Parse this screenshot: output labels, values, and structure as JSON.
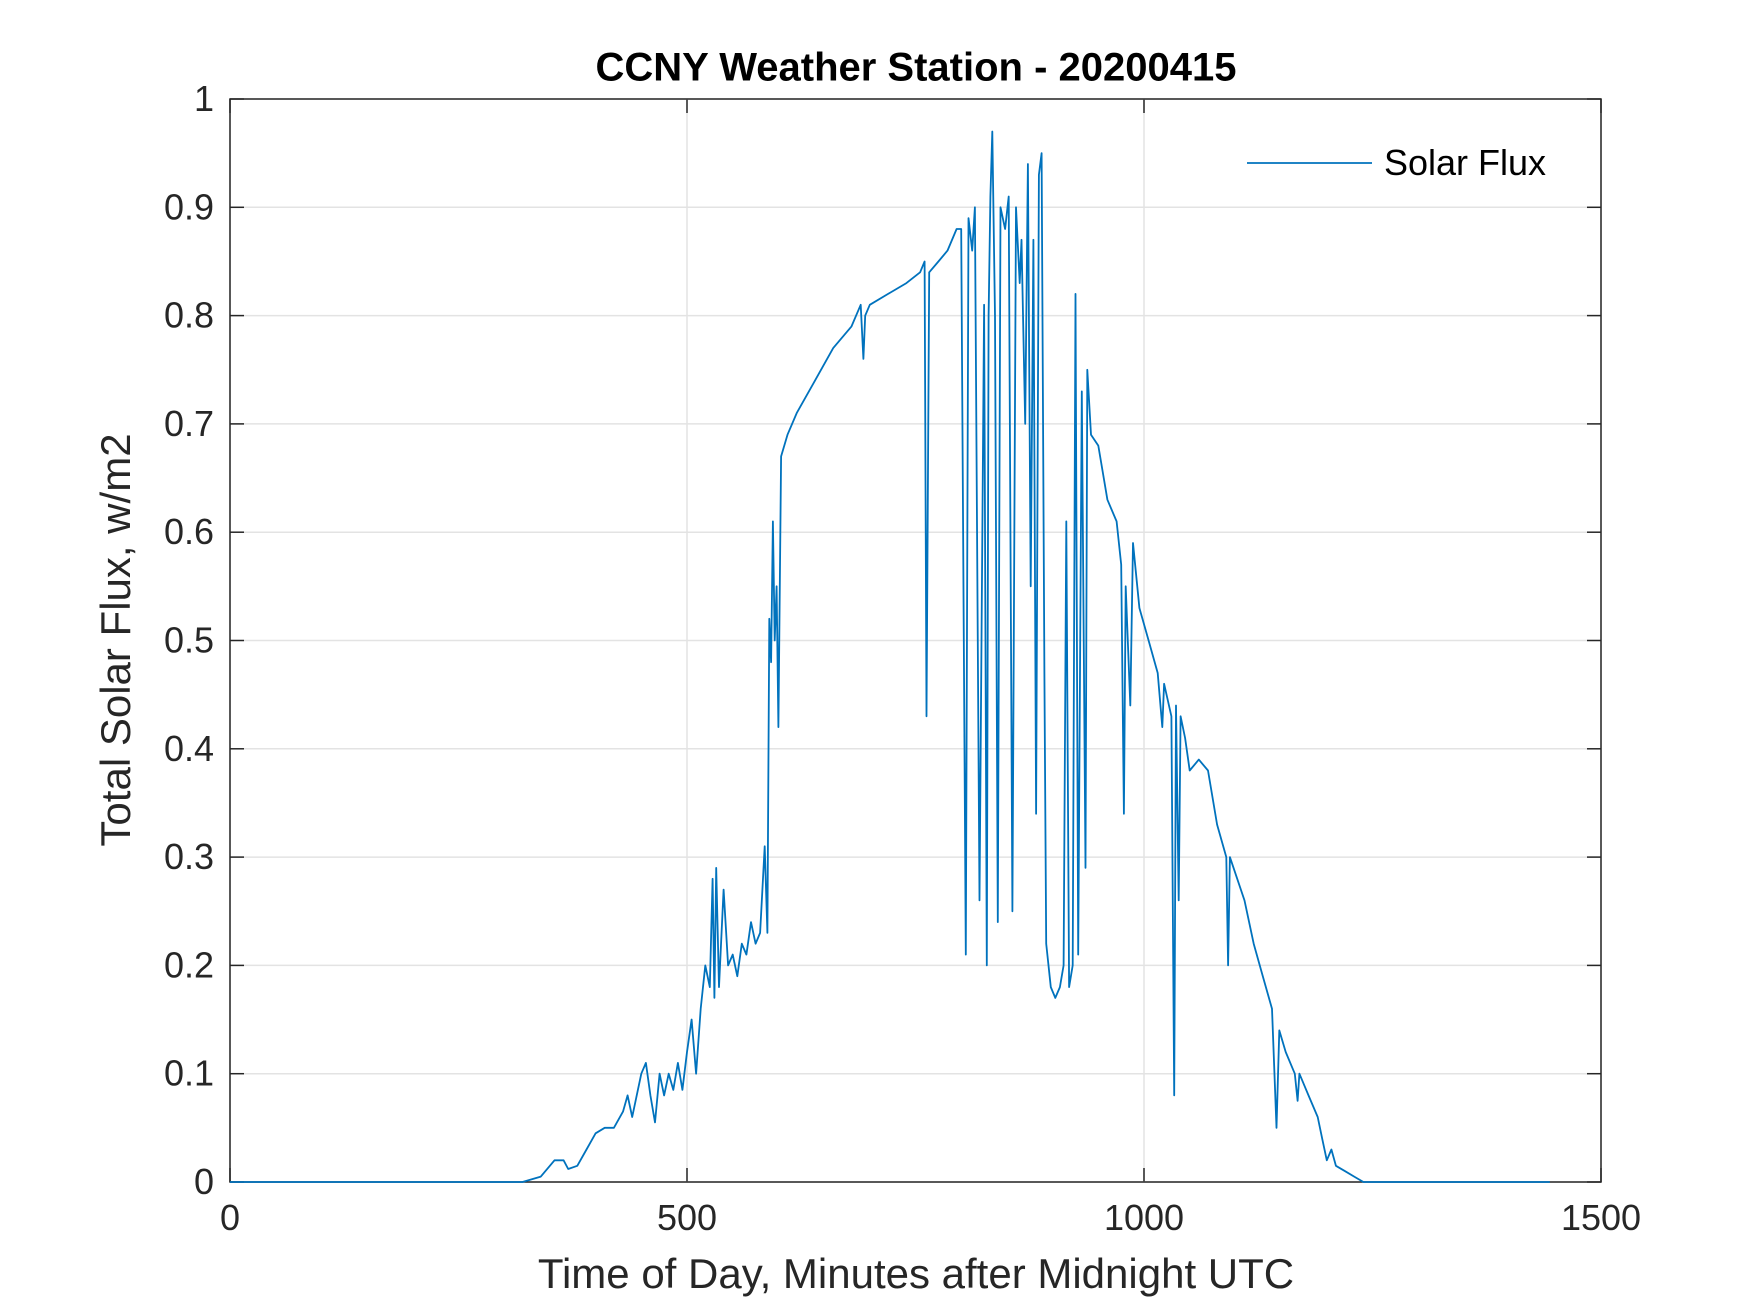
{
  "chart_data": {
    "type": "line",
    "title": "CCNY Weather Station - 20200415",
    "xlabel": "Time of Day, Minutes after Midnight UTC",
    "ylabel": "Total Solar Flux, w/m2",
    "xlim": [
      0,
      1500
    ],
    "xticks": [
      0,
      500,
      1000,
      1500
    ],
    "ylim": [
      0,
      1
    ],
    "yticks": [
      0,
      0.1,
      0.2,
      0.3,
      0.4,
      0.5,
      0.6,
      0.7,
      0.8,
      0.9,
      1
    ],
    "grid": true,
    "legend": "top-right",
    "series": [
      {
        "name": "Solar Flux",
        "color": "#0072bd",
        "x": [
          0,
          320,
          340,
          355,
          365,
          370,
          380,
          390,
          400,
          410,
          420,
          430,
          435,
          440,
          450,
          455,
          460,
          465,
          470,
          475,
          480,
          485,
          490,
          495,
          500,
          505,
          510,
          515,
          520,
          525,
          528,
          530,
          532,
          535,
          540,
          545,
          550,
          555,
          560,
          565,
          570,
          575,
          580,
          585,
          588,
          590,
          592,
          594,
          596,
          598,
          600,
          603,
          610,
          620,
          640,
          660,
          680,
          690,
          693,
          695,
          700,
          720,
          740,
          755,
          760,
          762,
          765,
          775,
          785,
          795,
          800,
          805,
          808,
          812,
          815,
          820,
          825,
          828,
          830,
          832,
          834,
          837,
          840,
          843,
          848,
          852,
          856,
          860,
          864,
          866,
          870,
          873,
          876,
          879,
          882,
          885,
          888,
          891,
          893,
          898,
          903,
          908,
          912,
          915,
          918,
          922,
          925,
          928,
          932,
          936,
          938,
          942,
          950,
          960,
          970,
          975,
          978,
          980,
          985,
          988,
          995,
          1005,
          1015,
          1020,
          1022,
          1030,
          1033,
          1035,
          1038,
          1040,
          1045,
          1050,
          1060,
          1070,
          1080,
          1090,
          1092,
          1094,
          1110,
          1120,
          1130,
          1140,
          1145,
          1148,
          1155,
          1165,
          1168,
          1170,
          1180,
          1190,
          1195,
          1200,
          1205,
          1210,
          1220,
          1230,
          1240,
          1444
        ],
        "values": [
          0,
          0,
          0.005,
          0.02,
          0.02,
          0.012,
          0.015,
          0.03,
          0.045,
          0.05,
          0.05,
          0.065,
          0.08,
          0.06,
          0.1,
          0.11,
          0.08,
          0.055,
          0.1,
          0.08,
          0.1,
          0.085,
          0.11,
          0.085,
          0.12,
          0.15,
          0.1,
          0.16,
          0.2,
          0.18,
          0.28,
          0.17,
          0.29,
          0.18,
          0.27,
          0.2,
          0.21,
          0.19,
          0.22,
          0.21,
          0.24,
          0.22,
          0.23,
          0.31,
          0.23,
          0.52,
          0.48,
          0.61,
          0.5,
          0.55,
          0.42,
          0.67,
          0.69,
          0.71,
          0.74,
          0.77,
          0.79,
          0.81,
          0.76,
          0.8,
          0.81,
          0.82,
          0.83,
          0.84,
          0.85,
          0.43,
          0.84,
          0.85,
          0.86,
          0.88,
          0.88,
          0.21,
          0.89,
          0.86,
          0.9,
          0.26,
          0.81,
          0.2,
          0.8,
          0.91,
          0.97,
          0.8,
          0.24,
          0.9,
          0.88,
          0.91,
          0.25,
          0.9,
          0.83,
          0.87,
          0.7,
          0.94,
          0.55,
          0.87,
          0.34,
          0.93,
          0.95,
          0.47,
          0.22,
          0.18,
          0.17,
          0.18,
          0.2,
          0.61,
          0.18,
          0.2,
          0.82,
          0.21,
          0.73,
          0.29,
          0.75,
          0.69,
          0.68,
          0.63,
          0.61,
          0.57,
          0.34,
          0.55,
          0.44,
          0.59,
          0.53,
          0.5,
          0.47,
          0.42,
          0.46,
          0.43,
          0.08,
          0.44,
          0.26,
          0.43,
          0.41,
          0.38,
          0.39,
          0.38,
          0.33,
          0.3,
          0.2,
          0.3,
          0.26,
          0.22,
          0.19,
          0.16,
          0.05,
          0.14,
          0.12,
          0.1,
          0.075,
          0.1,
          0.08,
          0.06,
          0.04,
          0.02,
          0.03,
          0.015,
          0.01,
          0.005,
          0,
          0
        ]
      }
    ]
  }
}
